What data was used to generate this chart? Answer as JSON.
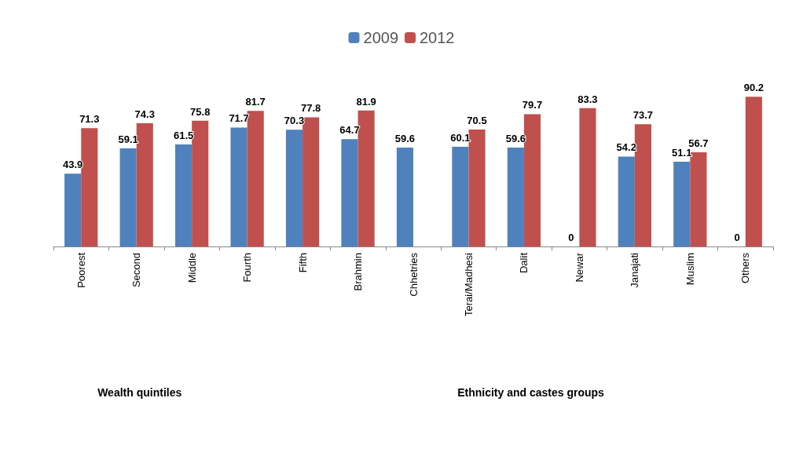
{
  "chart_data": {
    "type": "bar",
    "categories": [
      "Poorest",
      "Second",
      "Middle",
      "Fourth",
      "Fifth",
      "Brahmin",
      "Chhetries",
      "Terai/Madhesi",
      "Dalit",
      "Newar",
      "Janajati",
      "Muslim",
      "Others"
    ],
    "series": [
      {
        "name": "2009",
        "color": "#4f81bd",
        "values": [
          43.9,
          59.1,
          61.5,
          71.7,
          70.3,
          64.7,
          59.6,
          60.1,
          59.6,
          0,
          54.2,
          51.1,
          0
        ]
      },
      {
        "name": "2012",
        "color": "#c0504d",
        "values": [
          71.3,
          74.3,
          75.8,
          81.7,
          77.8,
          81.9,
          null,
          70.5,
          79.7,
          83.3,
          73.7,
          56.7,
          90.2
        ]
      }
    ],
    "annotations": [
      "Wealth quintiles",
      "Ethnicity and castes groups"
    ],
    "data_labels": true,
    "legend": "top",
    "grid": false,
    "tick_labels": "x"
  }
}
